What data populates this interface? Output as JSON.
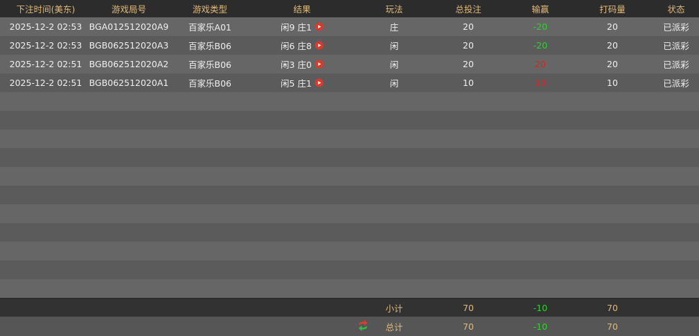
{
  "table": {
    "header": [
      "下注时间(美东)",
      "游戏局号",
      "游戏类型",
      "结果",
      "玩法",
      "总投注",
      "输赢",
      "打码量",
      "状态"
    ],
    "rows": [
      [
        "2025-12-2 02:53",
        "BGA012512020A9",
        "百家乐A01",
        "闲9 庄1",
        "庄",
        "20",
        "-20",
        "20",
        "已派彩"
      ],
      [
        "2025-12-2 02:53",
        "BGB062512020A3",
        "百家乐B06",
        "闲6 庄8",
        "闲",
        "20",
        "-20",
        "20",
        "已派彩"
      ],
      [
        "2025-12-2 02:51",
        "BGB062512020A2",
        "百家乐B06",
        "闲3 庄0",
        "闲",
        "20",
        "20",
        "20",
        "已派彩"
      ],
      [
        "2025-12-2 02:51",
        "BGB062512020A1",
        "百家乐B06",
        "闲5 庄1",
        "闲",
        "10",
        "10",
        "10",
        "已派彩"
      ]
    ],
    "subtotal": {
      "label": "小计",
      "total_bet": "70",
      "win_loss": "-10",
      "turnover": "70"
    },
    "total": {
      "label": "总计",
      "total_bet": "70",
      "win_loss": "-10",
      "turnover": "70"
    }
  }
}
